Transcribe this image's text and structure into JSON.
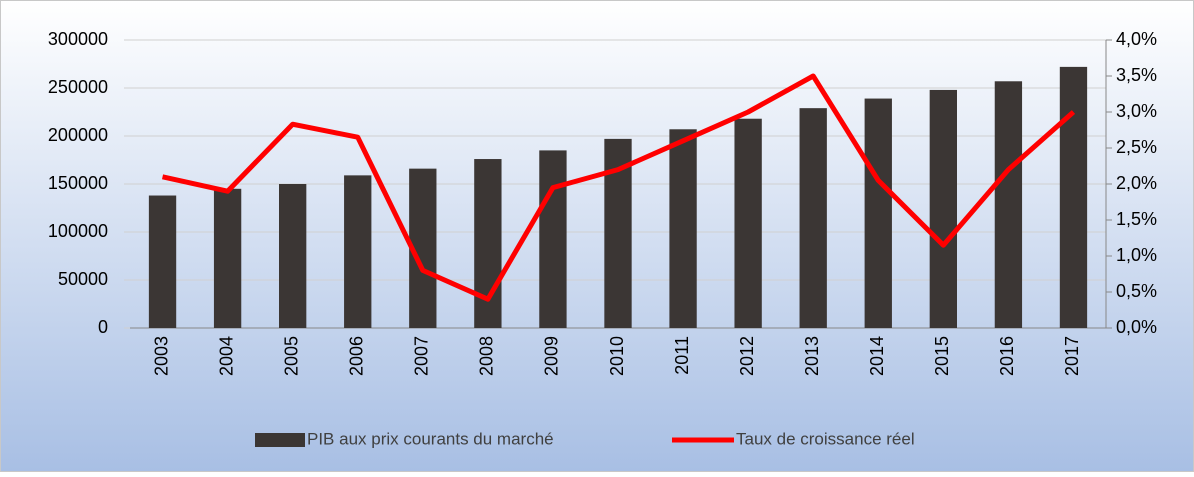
{
  "chart_data": {
    "type": "bar-line",
    "categories": [
      "2003",
      "2004",
      "2005",
      "2006",
      "2007",
      "2008",
      "2009",
      "2010",
      "2011",
      "2012",
      "2013",
      "2014",
      "2015",
      "2016",
      "2017"
    ],
    "series": [
      {
        "name": "PIB aux prix courants du marché",
        "color": "#3b3634",
        "type": "bar",
        "values": [
          138000,
          145000,
          150000,
          159000,
          166000,
          176000,
          185000,
          197000,
          207000,
          218000,
          229000,
          239000,
          248000,
          257000,
          272000
        ]
      },
      {
        "name": "Taux de croissance réel",
        "color": "#ff0000",
        "type": "line",
        "axis": "y2",
        "values": [
          2.1,
          1.9,
          2.83,
          2.65,
          0.8,
          0.4,
          1.95,
          2.2,
          2.6,
          3.0,
          3.5,
          2.05,
          1.15,
          2.2,
          3.0
        ]
      }
    ],
    "ylim": [
      0,
      300000
    ],
    "yticks": [
      0,
      50000,
      100000,
      150000,
      200000,
      250000,
      300000
    ],
    "y2lim": [
      0,
      4.0
    ],
    "y2ticks": [
      {
        "value": 0,
        "label": "0,0%"
      },
      {
        "value": 0.5,
        "label": "0,5%"
      },
      {
        "value": 1.0,
        "label": "1,0%"
      },
      {
        "value": 1.5,
        "label": "1,5%"
      },
      {
        "value": 2.0,
        "label": "2,0%"
      },
      {
        "value": 2.5,
        "label": "2,5%"
      },
      {
        "value": 3.0,
        "label": "3,0%"
      },
      {
        "value": 3.5,
        "label": "3,5%"
      },
      {
        "value": 4.0,
        "label": "4,0%"
      }
    ],
    "grid": true,
    "legend": "bottom"
  }
}
